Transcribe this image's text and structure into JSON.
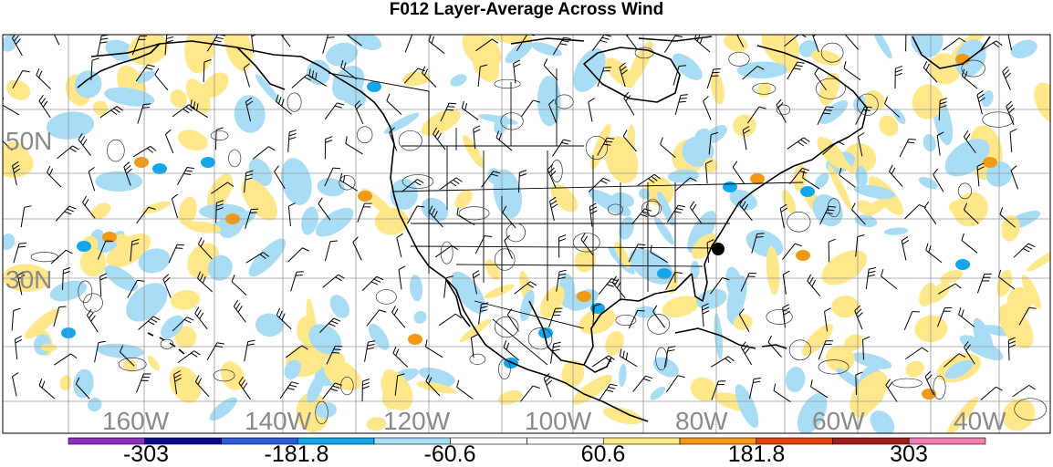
{
  "title": "F012 Layer-Average Across Wind",
  "lat_labels": [
    "50N",
    "30N"
  ],
  "lon_labels": [
    "160W",
    "140W",
    "120W",
    "100W",
    "80W",
    "60W",
    "40W"
  ],
  "colorbar": {
    "colors": [
      "#8c2fbf",
      "#0a0a8a",
      "#2e5bd8",
      "#14a6e8",
      "#a9dcf5",
      "#ffffff",
      "#ffffff",
      "#ffe78a",
      "#f29a16",
      "#e6400a",
      "#a01d1d",
      "#ef7fae"
    ],
    "labels": [
      "-303",
      "-181.8",
      "-60.6",
      "60.6",
      "181.8",
      "303"
    ]
  },
  "colors": {
    "light_blue": "#a9dcf5",
    "blue": "#14a6e8",
    "light_yellow": "#ffe78a",
    "orange": "#f29a16",
    "grid": "#9a9a9a",
    "label_gray": "#8a8a8a"
  },
  "marker": "station-dot"
}
